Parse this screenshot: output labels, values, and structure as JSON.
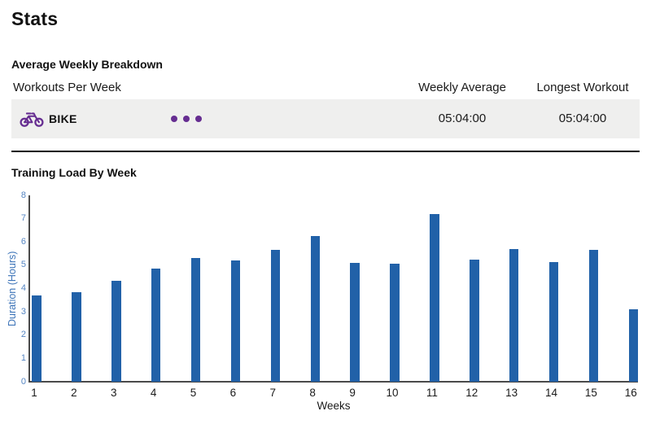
{
  "page": {
    "title": "Stats"
  },
  "breakdown": {
    "heading": "Average Weekly Breakdown",
    "columns": {
      "left": "Workouts Per Week",
      "middle": "Weekly Average",
      "right": "Longest Workout"
    },
    "row": {
      "sport": "BIKE",
      "icon": "bike-icon",
      "workouts_per_week_dots": 3,
      "weekly_average": "05:04:00",
      "longest_workout": "05:04:00"
    }
  },
  "chart_section": {
    "heading": "Training Load By Week"
  },
  "chart_data": {
    "type": "bar",
    "title": "Training Load By Week",
    "categories": [
      "1",
      "2",
      "3",
      "4",
      "5",
      "6",
      "7",
      "8",
      "9",
      "10",
      "11",
      "12",
      "13",
      "14",
      "15",
      "16"
    ],
    "values": [
      3.7,
      3.85,
      4.35,
      4.85,
      5.3,
      5.2,
      5.65,
      6.25,
      5.1,
      5.05,
      7.2,
      5.25,
      5.7,
      5.15,
      5.65,
      3.1
    ],
    "xlabel": "Weeks",
    "ylabel": "Duration (Hours)",
    "ylim": [
      0,
      8
    ],
    "yticks": [
      0,
      1,
      2,
      3,
      4,
      5,
      6,
      7,
      8
    ],
    "grid": false,
    "legend": false
  },
  "colors": {
    "sport_accent": "#662d91",
    "bar": "#2161a8",
    "ytick_text": "#5585c2",
    "ylabel_text": "#3d74b8",
    "axis_line": "#4a4a4a",
    "row_background": "#efefee"
  }
}
